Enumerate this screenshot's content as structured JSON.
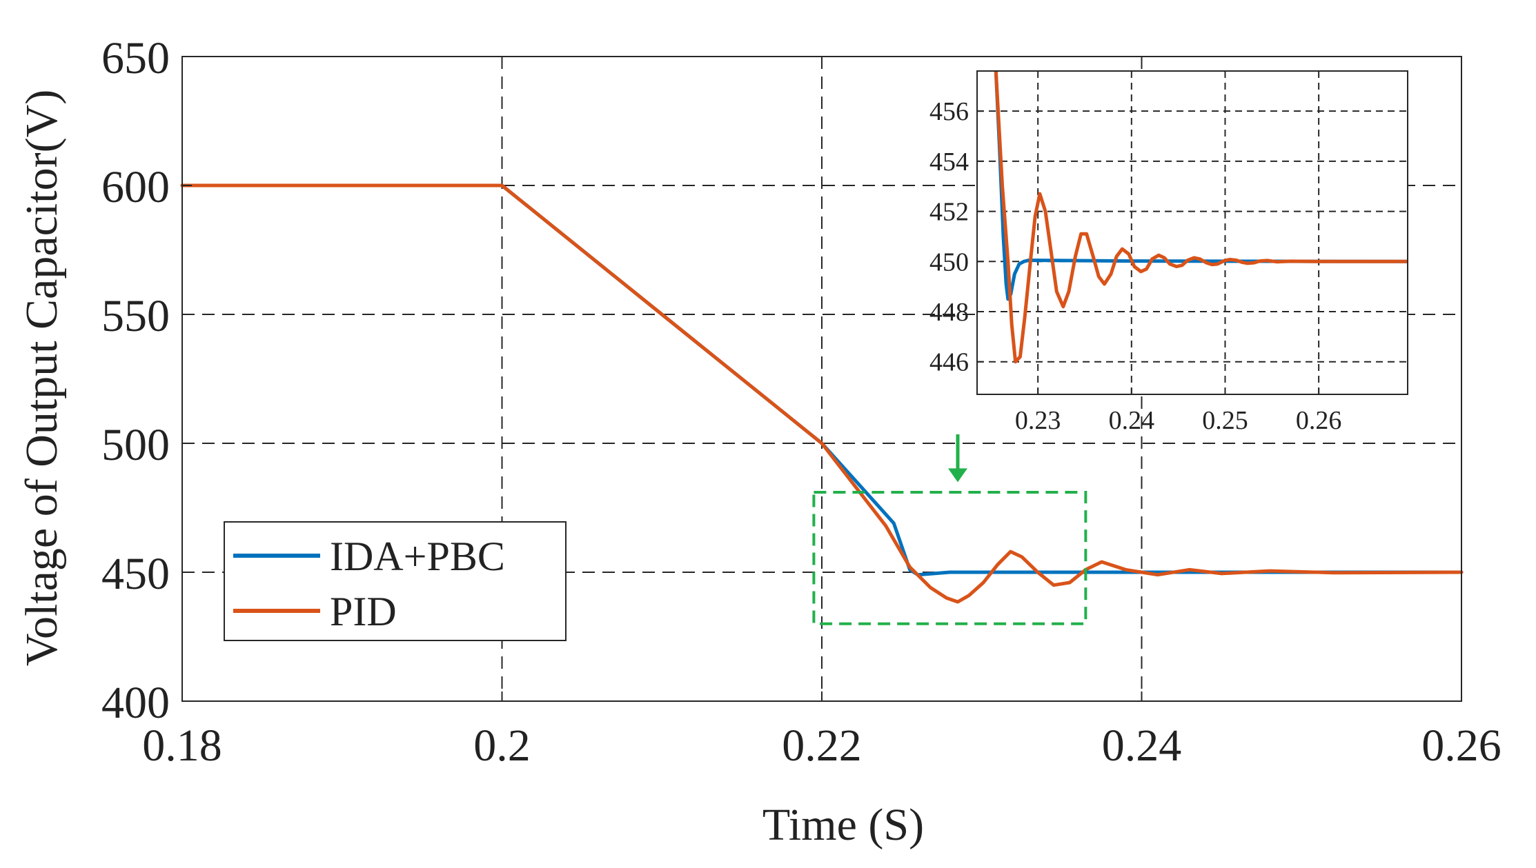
{
  "chart_data": {
    "type": "line",
    "xlabel": "Time (S)",
    "ylabel": "Voltage of Output Capacitor(V)",
    "xlim": [
      0.18,
      0.26
    ],
    "ylim": [
      400,
      650
    ],
    "xticks": [
      "0.18",
      "0.2",
      "0.22",
      "0.24",
      "0.26"
    ],
    "yticks": [
      "400",
      "450",
      "500",
      "550",
      "600",
      "650"
    ],
    "grid": "dashed",
    "legend_location": "lower-left",
    "series": [
      {
        "name": "IDA+PBC",
        "color": "#0072BD",
        "x": [
          0.18,
          0.2,
          0.21,
          0.22,
          0.2245,
          0.2255,
          0.226,
          0.227,
          0.228,
          0.23,
          0.24,
          0.25,
          0.26
        ],
        "y": [
          600,
          600,
          550,
          500,
          469,
          451,
          449,
          449.5,
          450,
          450,
          450,
          450,
          450
        ]
      },
      {
        "name": "PID",
        "color": "#D95319",
        "x": [
          0.18,
          0.2,
          0.21,
          0.22,
          0.224,
          0.2255,
          0.2268,
          0.2278,
          0.2285,
          0.2292,
          0.2301,
          0.231,
          0.2318,
          0.2325,
          0.2335,
          0.2345,
          0.2355,
          0.2365,
          0.2375,
          0.239,
          0.241,
          0.243,
          0.245,
          0.248,
          0.252,
          0.26
        ],
        "y": [
          600,
          600,
          550,
          500,
          468,
          452,
          444,
          440,
          438.5,
          441,
          446,
          453,
          458,
          456,
          450,
          445,
          446,
          451,
          454,
          451,
          449,
          451,
          449.5,
          450.5,
          449.8,
          450
        ]
      }
    ],
    "inset": {
      "xlim": [
        0.2235,
        0.2695
      ],
      "ylim": [
        444.7,
        457.6
      ],
      "xticks": [
        "0.23",
        "0.24",
        "0.25",
        "0.26"
      ],
      "yticks": [
        "446",
        "448",
        "450",
        "452",
        "454",
        "456"
      ],
      "series": [
        {
          "name": "IDA+PBC",
          "color": "#0072BD",
          "x": [
            0.2255,
            0.2259,
            0.2263,
            0.2266,
            0.2268,
            0.2271,
            0.2275,
            0.228,
            0.2285,
            0.229,
            0.24,
            0.2695
          ],
          "y": [
            457.7,
            454.5,
            451,
            449.1,
            448.5,
            448.7,
            449.5,
            449.9,
            450,
            450.05,
            450.02,
            450
          ]
        },
        {
          "name": "PID",
          "color": "#D95319",
          "x": [
            0.2255,
            0.2262,
            0.2268,
            0.2272,
            0.2276,
            0.2281,
            0.2286,
            0.2292,
            0.2297,
            0.2302,
            0.2308,
            0.2314,
            0.232,
            0.2327,
            0.2333,
            0.234,
            0.2346,
            0.2352,
            0.2359,
            0.2365,
            0.2371,
            0.2378,
            0.2384,
            0.239,
            0.2397,
            0.2403,
            0.241,
            0.2416,
            0.2422,
            0.2429,
            0.2435,
            0.2441,
            0.2448,
            0.2454,
            0.246,
            0.2467,
            0.2473,
            0.248,
            0.2486,
            0.2492,
            0.2499,
            0.2505,
            0.2512,
            0.2518,
            0.2524,
            0.2531,
            0.2537,
            0.2545,
            0.2555,
            0.257,
            0.26,
            0.2695
          ],
          "y": [
            457.7,
            453,
            450,
            447.5,
            446,
            446.2,
            447.8,
            450,
            451.8,
            452.7,
            452,
            450.4,
            448.8,
            448.2,
            448.8,
            450.2,
            451.1,
            451.1,
            450.2,
            449.4,
            449.1,
            449.5,
            450.2,
            450.5,
            450.3,
            449.8,
            449.6,
            449.7,
            450.1,
            450.25,
            450.15,
            449.9,
            449.8,
            449.85,
            450.05,
            450.15,
            450.1,
            449.95,
            449.88,
            449.9,
            450.03,
            450.08,
            450.05,
            449.97,
            449.93,
            449.95,
            450.02,
            450.04,
            449.99,
            450.01,
            450,
            450
          ]
        }
      ]
    },
    "annotations": [
      {
        "type": "dashed-box",
        "color": "#22B04A",
        "x_range": [
          0.2195,
          0.2365
        ],
        "y_range": [
          430,
          481
        ]
      },
      {
        "type": "arrow",
        "color": "#22B04A",
        "direction": "down",
        "x": 0.2285,
        "y_range": [
          496,
          486
        ]
      }
    ]
  }
}
